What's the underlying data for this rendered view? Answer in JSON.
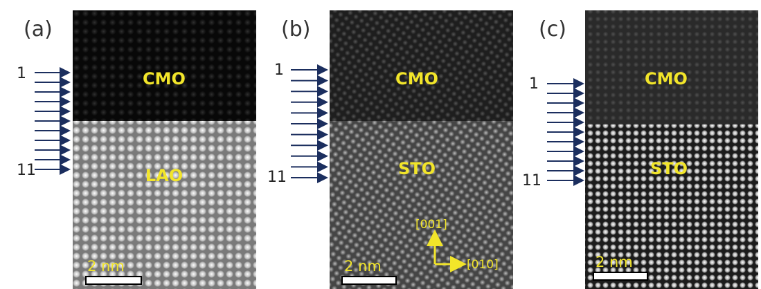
{
  "panels": [
    {
      "label": "(a)",
      "top_layer": "CMO",
      "bottom_layer": "LAO",
      "first_arrow": "1",
      "last_arrow": "11",
      "scale_bar": "2 nm"
    },
    {
      "label": "(b)",
      "top_layer": "CMO",
      "bottom_layer": "STO",
      "first_arrow": "1",
      "last_arrow": "11",
      "scale_bar": "2 nm",
      "axis_up": "[001]",
      "axis_right": "[010]"
    },
    {
      "label": "(c)",
      "top_layer": "CMO",
      "bottom_layer": "STO",
      "first_arrow": "1",
      "last_arrow": "11",
      "scale_bar": "2 nm"
    }
  ]
}
